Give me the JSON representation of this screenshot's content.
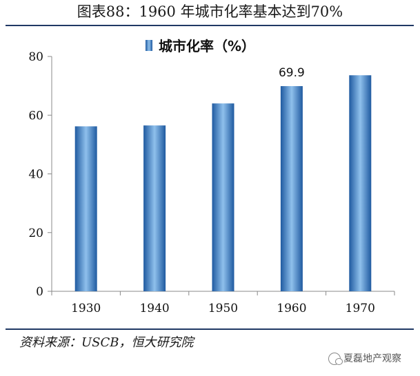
{
  "header": {
    "title": "图表88：1960 年城市化率基本达到70%"
  },
  "footer": {
    "source": "资料来源：USCB，恒大研究院",
    "watermark": "夏磊地产观察"
  },
  "colors": {
    "bar_dark": "#1f5aa0",
    "bar_light": "#8fc0ec",
    "axis": "#888888",
    "rule": "#1f3864"
  },
  "chart_data": {
    "type": "bar",
    "categories": [
      "1930",
      "1940",
      "1950",
      "1960",
      "1970"
    ],
    "series": [
      {
        "name": "城市化率（%）",
        "values": [
          56.2,
          56.5,
          64.0,
          69.9,
          73.6
        ]
      }
    ],
    "data_labels": [
      {
        "category": "1960",
        "text": "69.9"
      }
    ],
    "yticks": [
      "0",
      "20",
      "40",
      "60",
      "80"
    ],
    "ylim": [
      0,
      80
    ],
    "grid": false,
    "legend": "top-center",
    "xlabel": "",
    "ylabel": ""
  }
}
